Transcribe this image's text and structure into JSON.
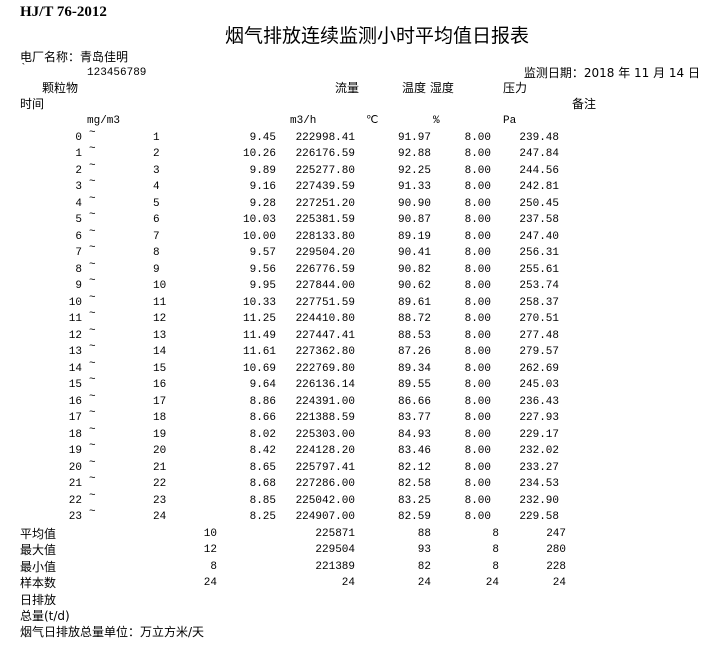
{
  "standard": "HJ/T 76-2012",
  "title": "烟气排放连续监测小时平均值日报表",
  "plant_label": "电厂名称：青岛佳明",
  "mark": "`",
  "plant_code": "123456789",
  "date_label": "监测日期：2018  年 11 月 14 日",
  "headers": {
    "dust": "颗粒物",
    "flow": "流量",
    "temp_humidity": "温度 湿度",
    "pressure": "压力",
    "time": "时间",
    "remark": "备注"
  },
  "units": {
    "dust": "mg/m3",
    "flow": "m3/h",
    "temp": "℃",
    "humidity": "%",
    "pressure": "Pa"
  },
  "tilde": "~",
  "rows": [
    {
      "start": "0",
      "end": "1",
      "dust": "9.45",
      "flow": "222998.41",
      "temp": "91.97",
      "humidity": "8.00",
      "pressure": "239.48"
    },
    {
      "start": "1",
      "end": "2",
      "dust": "10.26",
      "flow": "226176.59",
      "temp": "92.88",
      "humidity": "8.00",
      "pressure": "247.84"
    },
    {
      "start": "2",
      "end": "3",
      "dust": "9.89",
      "flow": "225277.80",
      "temp": "92.25",
      "humidity": "8.00",
      "pressure": "244.56"
    },
    {
      "start": "3",
      "end": "4",
      "dust": "9.16",
      "flow": "227439.59",
      "temp": "91.33",
      "humidity": "8.00",
      "pressure": "242.81"
    },
    {
      "start": "4",
      "end": "5",
      "dust": "9.28",
      "flow": "227251.20",
      "temp": "90.90",
      "humidity": "8.00",
      "pressure": "250.45"
    },
    {
      "start": "5",
      "end": "6",
      "dust": "10.03",
      "flow": "225381.59",
      "temp": "90.87",
      "humidity": "8.00",
      "pressure": "237.58"
    },
    {
      "start": "6",
      "end": "7",
      "dust": "10.00",
      "flow": "228133.80",
      "temp": "89.19",
      "humidity": "8.00",
      "pressure": "247.40"
    },
    {
      "start": "7",
      "end": "8",
      "dust": "9.57",
      "flow": "229504.20",
      "temp": "90.41",
      "humidity": "8.00",
      "pressure": "256.31"
    },
    {
      "start": "8",
      "end": "9",
      "dust": "9.56",
      "flow": "226776.59",
      "temp": "90.82",
      "humidity": "8.00",
      "pressure": "255.61"
    },
    {
      "start": "9",
      "end": "10",
      "dust": "9.95",
      "flow": "227844.00",
      "temp": "90.62",
      "humidity": "8.00",
      "pressure": "253.74"
    },
    {
      "start": "10",
      "end": "11",
      "dust": "10.33",
      "flow": "227751.59",
      "temp": "89.61",
      "humidity": "8.00",
      "pressure": "258.37"
    },
    {
      "start": "11",
      "end": "12",
      "dust": "11.25",
      "flow": "224410.80",
      "temp": "88.72",
      "humidity": "8.00",
      "pressure": "270.51"
    },
    {
      "start": "12",
      "end": "13",
      "dust": "11.49",
      "flow": "227447.41",
      "temp": "88.53",
      "humidity": "8.00",
      "pressure": "277.48"
    },
    {
      "start": "13",
      "end": "14",
      "dust": "11.61",
      "flow": "227362.80",
      "temp": "87.26",
      "humidity": "8.00",
      "pressure": "279.57"
    },
    {
      "start": "14",
      "end": "15",
      "dust": "10.69",
      "flow": "222769.80",
      "temp": "89.34",
      "humidity": "8.00",
      "pressure": "262.69"
    },
    {
      "start": "15",
      "end": "16",
      "dust": "9.64",
      "flow": "226136.14",
      "temp": "89.55",
      "humidity": "8.00",
      "pressure": "245.03"
    },
    {
      "start": "16",
      "end": "17",
      "dust": "8.86",
      "flow": "224391.00",
      "temp": "86.66",
      "humidity": "8.00",
      "pressure": "236.43"
    },
    {
      "start": "17",
      "end": "18",
      "dust": "8.66",
      "flow": "221388.59",
      "temp": "83.77",
      "humidity": "8.00",
      "pressure": "227.93"
    },
    {
      "start": "18",
      "end": "19",
      "dust": "8.02",
      "flow": "225303.00",
      "temp": "84.93",
      "humidity": "8.00",
      "pressure": "229.17"
    },
    {
      "start": "19",
      "end": "20",
      "dust": "8.42",
      "flow": "224128.20",
      "temp": "83.46",
      "humidity": "8.00",
      "pressure": "232.02"
    },
    {
      "start": "20",
      "end": "21",
      "dust": "8.65",
      "flow": "225797.41",
      "temp": "82.12",
      "humidity": "8.00",
      "pressure": "233.27"
    },
    {
      "start": "21",
      "end": "22",
      "dust": "8.68",
      "flow": "227286.00",
      "temp": "82.58",
      "humidity": "8.00",
      "pressure": "234.53"
    },
    {
      "start": "22",
      "end": "23",
      "dust": "8.85",
      "flow": "225042.00",
      "temp": "83.25",
      "humidity": "8.00",
      "pressure": "232.90"
    },
    {
      "start": "23",
      "end": "24",
      "dust": "8.25",
      "flow": "224907.00",
      "temp": "82.59",
      "humidity": "8.00",
      "pressure": "229.58"
    }
  ],
  "summary": [
    {
      "label": "平均值",
      "dust": "10",
      "flow": "225871",
      "temp": "88",
      "humidity": "8",
      "pressure": "247"
    },
    {
      "label": "最大值",
      "dust": "12",
      "flow": "229504",
      "temp": "93",
      "humidity": "8",
      "pressure": "280"
    },
    {
      "label": "最小值",
      "dust": "8",
      "flow": "221389",
      "temp": "82",
      "humidity": "8",
      "pressure": "228"
    },
    {
      "label": "样本数",
      "dust": "24",
      "flow": "24",
      "temp": "24",
      "humidity": "24",
      "pressure": "24"
    }
  ],
  "daily_label_1": "日排放",
  "daily_label_2": "总量(t/d)",
  "unit_note": "烟气日排放总量单位：万立方米/天"
}
